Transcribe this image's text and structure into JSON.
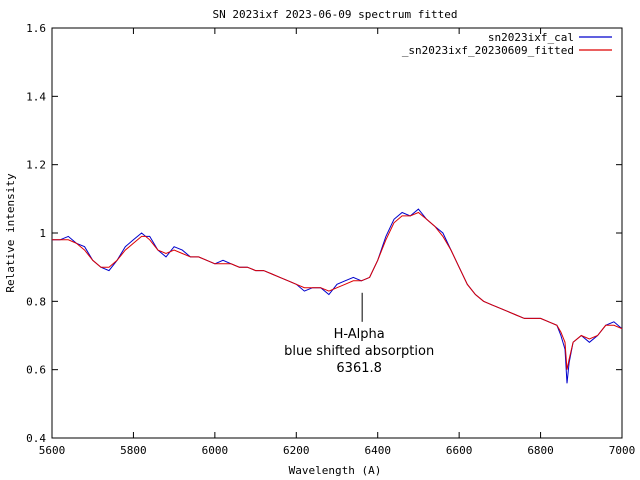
{
  "chart_data": {
    "type": "line",
    "title": "SN 2023ixf   2023-06-09   spectrum fitted",
    "xlabel": "Wavelength (A)",
    "ylabel": "Relative intensity",
    "xlim": [
      5600,
      7000
    ],
    "ylim": [
      0.4,
      1.6
    ],
    "x_ticks": [
      {
        "value": 5600,
        "label": "5600"
      },
      {
        "value": 5800,
        "label": "5800"
      },
      {
        "value": 6000,
        "label": "6000"
      },
      {
        "value": 6200,
        "label": "6200"
      },
      {
        "value": 6400,
        "label": "6400"
      },
      {
        "value": 6600,
        "label": "6600"
      },
      {
        "value": 6800,
        "label": "6800"
      },
      {
        "value": 7000,
        "label": "7000"
      }
    ],
    "y_ticks": [
      {
        "value": 0.4,
        "label": "0.4"
      },
      {
        "value": 0.6,
        "label": "0.6"
      },
      {
        "value": 0.8,
        "label": "0.8"
      },
      {
        "value": 1.0,
        "label": "1"
      },
      {
        "value": 1.2,
        "label": "1.2"
      },
      {
        "value": 1.4,
        "label": "1.4"
      },
      {
        "value": 1.6,
        "label": "1.6"
      }
    ],
    "grid": false,
    "legend_position": "top-right",
    "series": [
      {
        "name": "sn2023ixf_cal",
        "color": "#0000cc",
        "x": [
          5600,
          5620,
          5640,
          5660,
          5680,
          5700,
          5720,
          5740,
          5760,
          5780,
          5800,
          5820,
          5830,
          5840,
          5860,
          5880,
          5900,
          5920,
          5940,
          5960,
          5980,
          6000,
          6020,
          6040,
          6060,
          6080,
          6100,
          6120,
          6140,
          6160,
          6180,
          6200,
          6220,
          6240,
          6260,
          6280,
          6300,
          6320,
          6340,
          6360,
          6380,
          6400,
          6420,
          6440,
          6460,
          6480,
          6500,
          6520,
          6540,
          6560,
          6580,
          6600,
          6620,
          6640,
          6660,
          6680,
          6700,
          6720,
          6740,
          6760,
          6780,
          6800,
          6820,
          6840,
          6850,
          6860,
          6865,
          6870,
          6880,
          6900,
          6920,
          6940,
          6960,
          6980,
          7000
        ],
        "y": [
          0.98,
          0.98,
          0.99,
          0.97,
          0.96,
          0.92,
          0.9,
          0.89,
          0.92,
          0.96,
          0.98,
          1.0,
          0.99,
          0.99,
          0.95,
          0.93,
          0.96,
          0.95,
          0.93,
          0.93,
          0.92,
          0.91,
          0.92,
          0.91,
          0.9,
          0.9,
          0.89,
          0.89,
          0.88,
          0.87,
          0.86,
          0.85,
          0.83,
          0.84,
          0.84,
          0.82,
          0.85,
          0.86,
          0.87,
          0.86,
          0.87,
          0.92,
          0.99,
          1.04,
          1.06,
          1.05,
          1.07,
          1.04,
          1.02,
          1.0,
          0.95,
          0.9,
          0.85,
          0.82,
          0.8,
          0.79,
          0.78,
          0.77,
          0.76,
          0.75,
          0.75,
          0.75,
          0.74,
          0.73,
          0.7,
          0.66,
          0.56,
          0.62,
          0.68,
          0.7,
          0.68,
          0.7,
          0.73,
          0.74,
          0.72
        ]
      },
      {
        "name": "_sn2023ixf_20230609_fitted",
        "color": "#dd0000",
        "x": [
          5600,
          5620,
          5640,
          5660,
          5680,
          5700,
          5720,
          5740,
          5760,
          5780,
          5800,
          5820,
          5830,
          5840,
          5860,
          5880,
          5900,
          5920,
          5940,
          5960,
          5980,
          6000,
          6020,
          6040,
          6060,
          6080,
          6100,
          6120,
          6140,
          6160,
          6180,
          6200,
          6220,
          6240,
          6260,
          6280,
          6300,
          6320,
          6340,
          6360,
          6380,
          6400,
          6420,
          6440,
          6460,
          6480,
          6500,
          6520,
          6540,
          6560,
          6580,
          6600,
          6620,
          6640,
          6660,
          6680,
          6700,
          6720,
          6740,
          6760,
          6780,
          6800,
          6820,
          6840,
          6850,
          6860,
          6865,
          6870,
          6880,
          6900,
          6920,
          6940,
          6960,
          6980,
          7000
        ],
        "y": [
          0.98,
          0.98,
          0.98,
          0.97,
          0.95,
          0.92,
          0.9,
          0.9,
          0.92,
          0.95,
          0.97,
          0.99,
          0.99,
          0.98,
          0.95,
          0.94,
          0.95,
          0.94,
          0.93,
          0.93,
          0.92,
          0.91,
          0.91,
          0.91,
          0.9,
          0.9,
          0.89,
          0.89,
          0.88,
          0.87,
          0.86,
          0.85,
          0.84,
          0.84,
          0.84,
          0.83,
          0.84,
          0.85,
          0.86,
          0.86,
          0.87,
          0.92,
          0.98,
          1.03,
          1.05,
          1.05,
          1.06,
          1.04,
          1.02,
          0.99,
          0.95,
          0.9,
          0.85,
          0.82,
          0.8,
          0.79,
          0.78,
          0.77,
          0.76,
          0.75,
          0.75,
          0.75,
          0.74,
          0.73,
          0.71,
          0.68,
          0.6,
          0.63,
          0.68,
          0.7,
          0.69,
          0.7,
          0.73,
          0.73,
          0.72
        ]
      }
    ],
    "annotations": [
      {
        "lines": [
          "H-Alpha",
          "blue shifted absorption",
          "6361.8"
        ],
        "x": 6361.8,
        "y": 0.825,
        "line_bottom_y": 0.74
      }
    ]
  }
}
